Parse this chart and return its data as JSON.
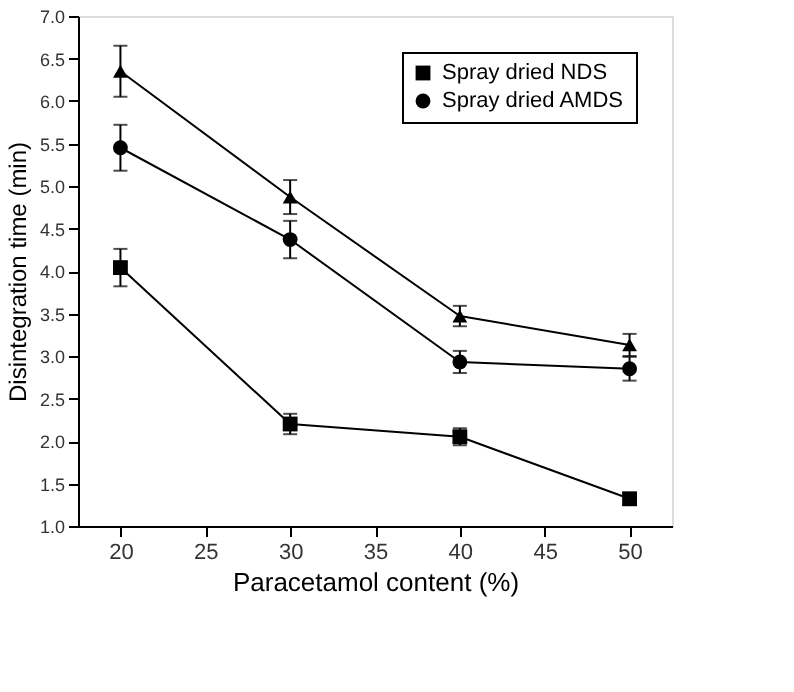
{
  "chart_data": {
    "type": "line",
    "xlabel": "Paracetamol content (%)",
    "ylabel": "Disintegration time (min)",
    "x": [
      20,
      30,
      40,
      50
    ],
    "series": [
      {
        "name": "Spray dried NDS",
        "color": "#000000",
        "marker": "square",
        "values": [
          4.04,
          2.2,
          2.05,
          1.32
        ],
        "errors": [
          0.22,
          0.12,
          0.1,
          0.07
        ]
      },
      {
        "name": "Spray dried AMDS",
        "color": "#000000",
        "marker": "circle",
        "values": [
          5.45,
          4.37,
          2.93,
          2.85
        ],
        "errors": [
          0.27,
          0.22,
          0.13,
          0.14
        ]
      },
      {
        "color": "#000000",
        "marker": "triangle",
        "values": [
          6.35,
          4.87,
          3.47,
          3.13
        ],
        "errors": [
          0.3,
          0.2,
          0.12,
          0.13
        ]
      }
    ],
    "xlim": [
      17.5,
      52.5
    ],
    "xticks": [
      20,
      25,
      30,
      35,
      40,
      45,
      50
    ],
    "ylim": [
      1.0,
      7.0
    ],
    "yticks": [
      {
        "value": 1,
        "label": "1.0"
      },
      1.5,
      {
        "value": 2,
        "label": "2.0"
      },
      2.5,
      {
        "value": 3,
        "label": "3.0"
      },
      3.5,
      {
        "value": 4,
        "label": "4.0"
      },
      4.5,
      {
        "value": 5,
        "label": "5.0"
      },
      5.5,
      {
        "value": 6,
        "label": "6.0"
      },
      6.5,
      {
        "value": 7,
        "label": "7.0"
      }
    ],
    "grid": false,
    "legend": "top right",
    "line_style": "solid"
  }
}
